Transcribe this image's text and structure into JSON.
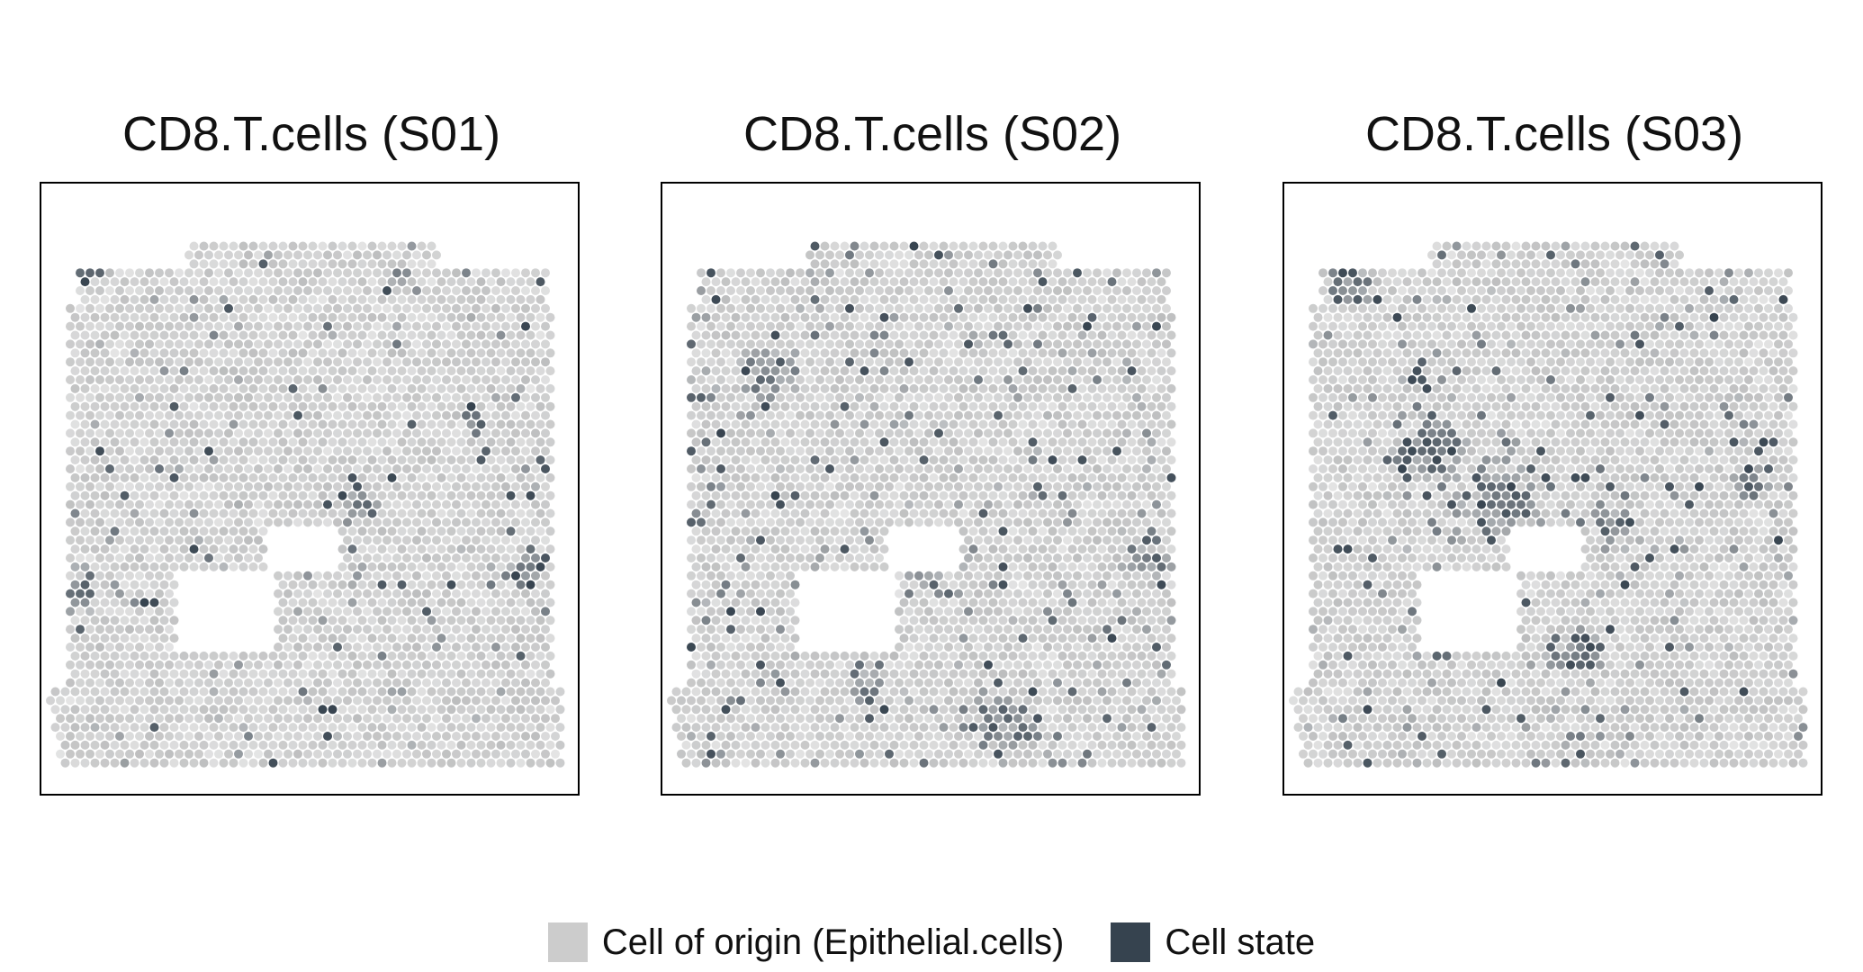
{
  "chart_data": {
    "type": "scatter",
    "panels": [
      {
        "title": "CD8.T.cells (S01)",
        "sample": "S01"
      },
      {
        "title": "CD8.T.cells (S02)",
        "sample": "S02"
      },
      {
        "title": "CD8.T.cells (S03)",
        "sample": "S03"
      }
    ],
    "legend": {
      "placement": "bottom",
      "items": [
        {
          "label": "Cell of origin (Epithelial.cells)",
          "color": "#cccccc"
        },
        {
          "label": "Cell state",
          "color": "#36434f"
        }
      ]
    },
    "axes": "none",
    "grid": false
  },
  "colors": {
    "cell_of_origin": "#cccccc",
    "cell_state": "#36434f",
    "background": "#ffffff",
    "frame": "#000000"
  }
}
